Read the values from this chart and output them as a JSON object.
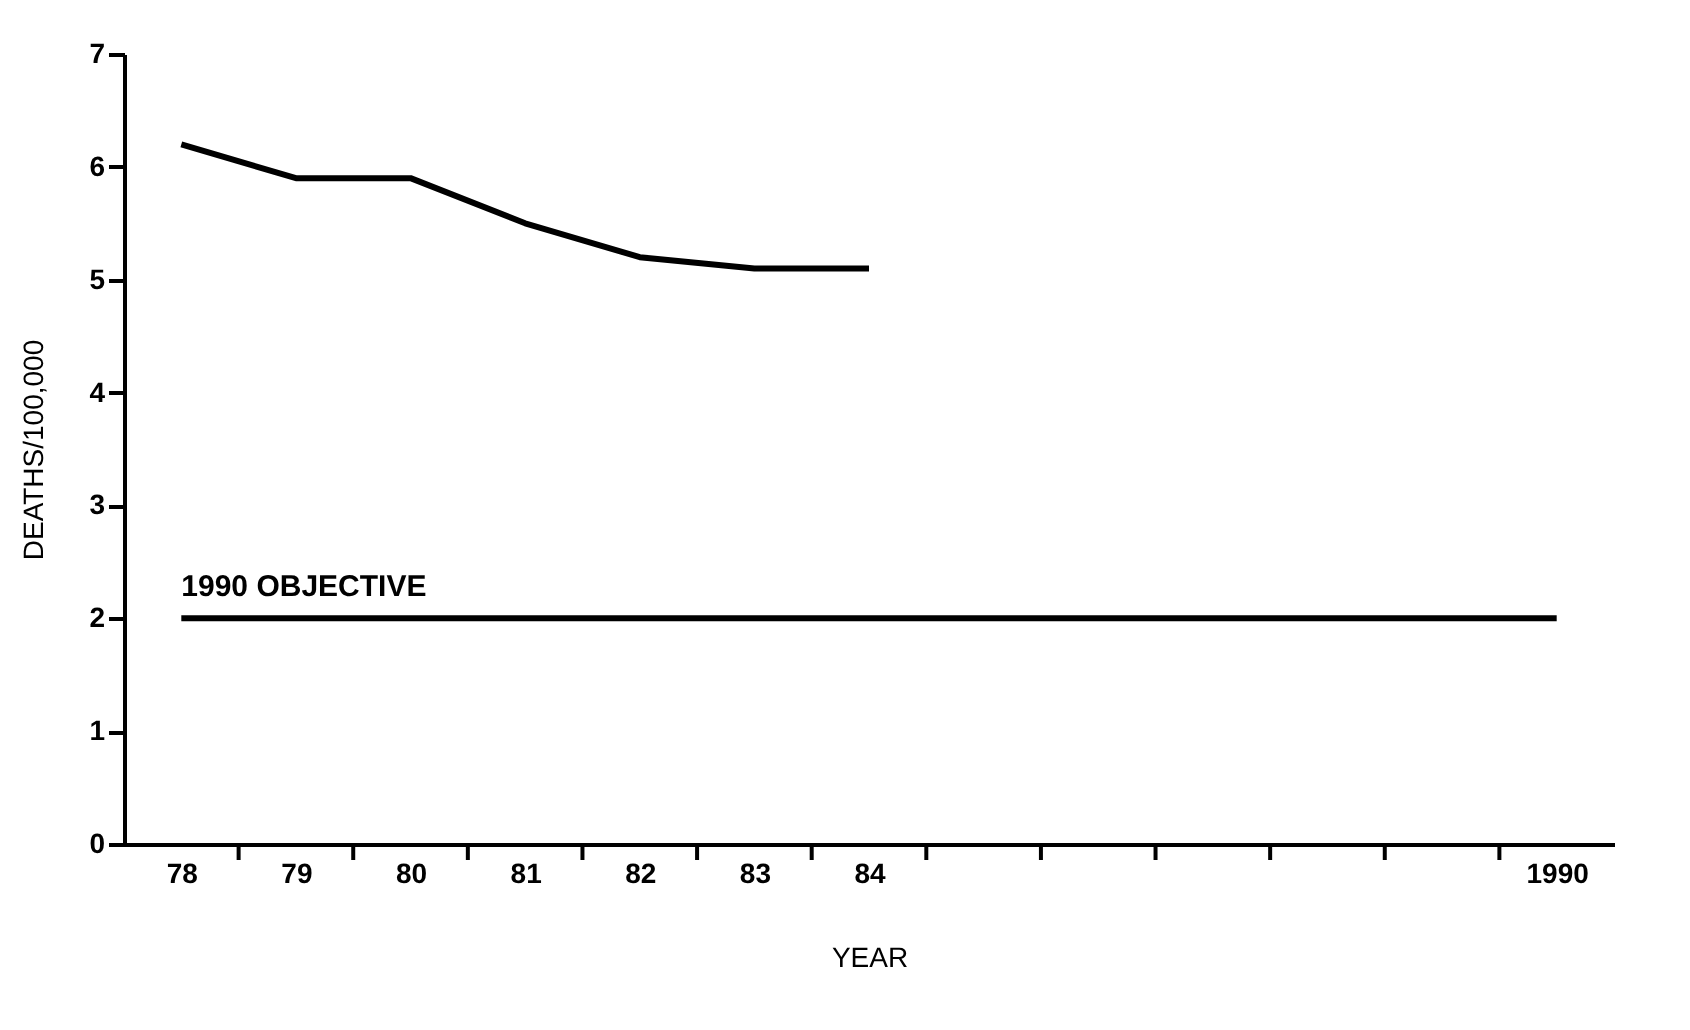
{
  "chart_data": {
    "type": "line",
    "xlabel": "YEAR",
    "ylabel": "DEATHS/100,000",
    "series": [
      {
        "x": [
          1978,
          1979,
          1980,
          1981,
          1982,
          1983,
          1984
        ],
        "values": [
          6.2,
          5.9,
          5.9,
          5.5,
          5.2,
          5.1,
          5.1
        ],
        "color": "#000000"
      },
      {
        "name": "1990 OBJECTIVE",
        "x": [
          1978,
          1990
        ],
        "values": [
          2,
          2
        ],
        "color": "#000000"
      }
    ],
    "xlim": [
      1977.5,
      1990.5
    ],
    "xticks": [
      {
        "value": 1978,
        "label": "78"
      },
      {
        "value": 1979,
        "label": "79"
      },
      {
        "value": 1980,
        "label": "80"
      },
      {
        "value": 1981,
        "label": "81"
      },
      {
        "value": 1982,
        "label": "82"
      },
      {
        "value": 1983,
        "label": "83"
      },
      {
        "value": 1984,
        "label": "84"
      },
      {
        "value": 1990,
        "label": "1990"
      },
      {
        "value": 1978.5,
        "label": null
      },
      {
        "value": 1979.5,
        "label": null
      },
      {
        "value": 1980.5,
        "label": null
      },
      {
        "value": 1981.5,
        "label": null
      },
      {
        "value": 1982.5,
        "label": null
      },
      {
        "value": 1983.5,
        "label": null
      },
      {
        "value": 1984.5,
        "label": null
      },
      {
        "value": 1985.5,
        "label": null
      },
      {
        "value": 1986.5,
        "label": null
      },
      {
        "value": 1987.5,
        "label": null
      },
      {
        "value": 1988.5,
        "label": null
      },
      {
        "value": 1989.5,
        "label": null
      }
    ],
    "ylim": [
      0,
      7
    ],
    "yticks": [
      0,
      1,
      2,
      3,
      4,
      5,
      6,
      7
    ],
    "grid": false,
    "marker": "none",
    "line_style": "solid"
  }
}
